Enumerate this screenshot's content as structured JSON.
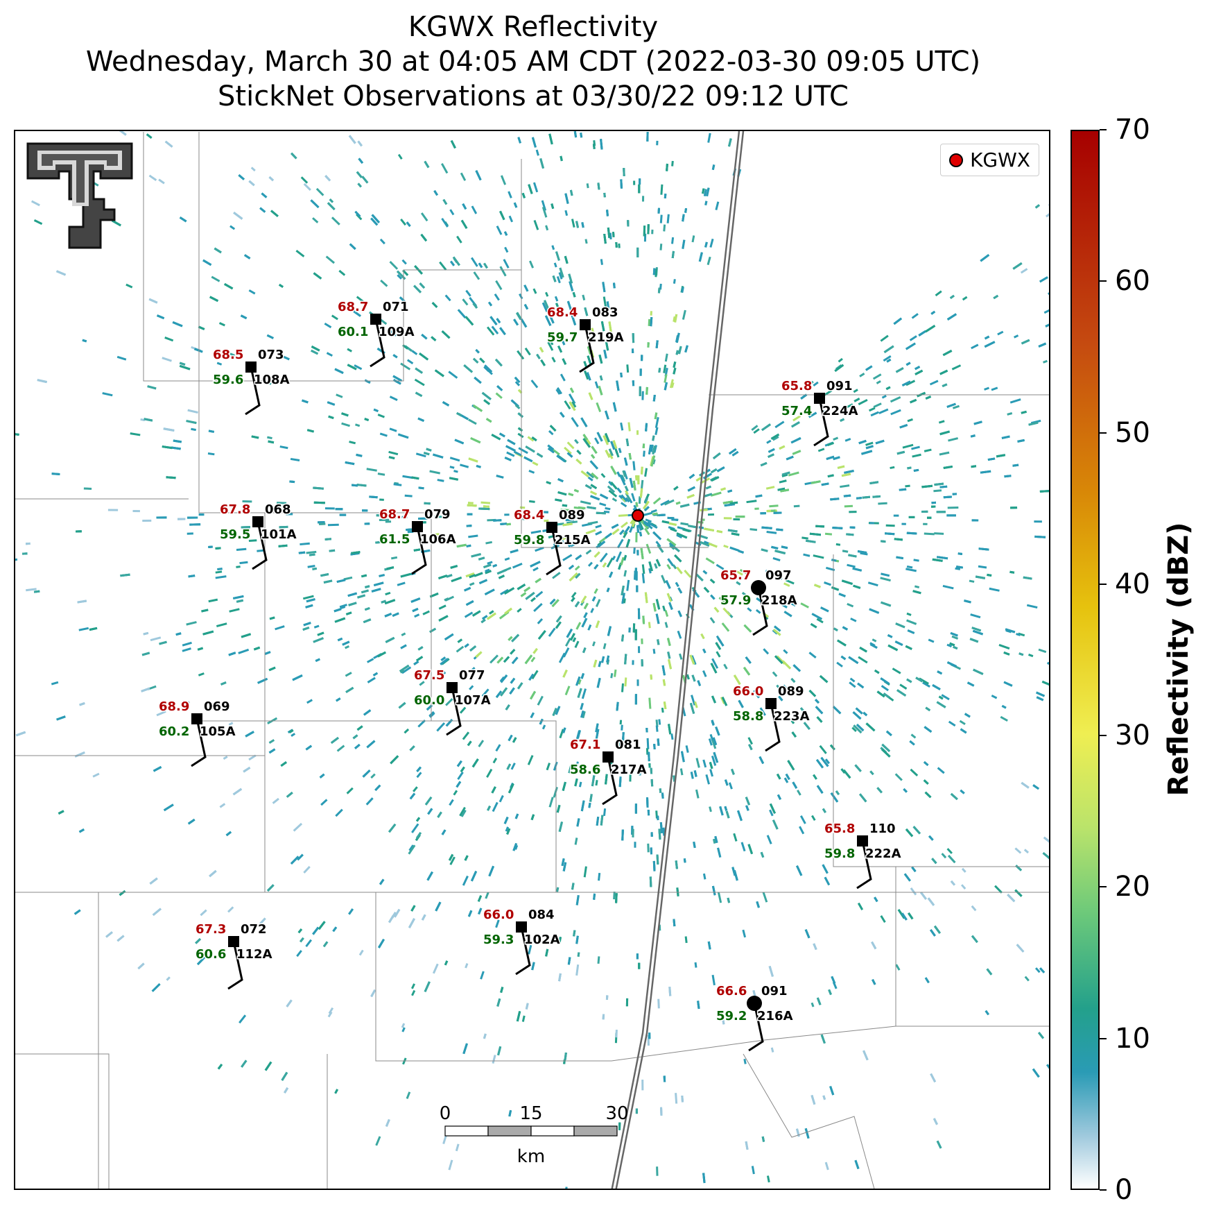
{
  "title": {
    "line1": "KGWX Reflectivity",
    "line2": "Wednesday, March 30 at 04:05 AM CDT (2022-03-30 09:05 UTC)",
    "line3": "StickNet Observations at 03/30/22 09:12 UTC"
  },
  "legend": {
    "label": "KGWX",
    "marker_color": "#e00000"
  },
  "colorbar": {
    "label": "Reflectivity (dBZ)",
    "ticks": [
      "0",
      "10",
      "20",
      "30",
      "40",
      "50",
      "60",
      "70"
    ]
  },
  "scale_bar": {
    "ticks": [
      "0",
      "15",
      "30"
    ],
    "unit": "km"
  },
  "logo": "texas-tech-double-t-logo",
  "colors": {
    "temperature": "#b00000",
    "dewpoint": "#006400",
    "station_id": "#000000"
  },
  "stations": [
    {
      "id": "109A",
      "temp": "68.7",
      "dew": "60.1",
      "dir": "071"
    },
    {
      "id": "219A",
      "temp": "68.4",
      "dew": "59.7",
      "dir": "083"
    },
    {
      "id": "108A",
      "temp": "68.5",
      "dew": "59.6",
      "dir": "073"
    },
    {
      "id": "224A",
      "temp": "65.8",
      "dew": "57.4",
      "dir": "091"
    },
    {
      "id": "101A",
      "temp": "67.8",
      "dew": "59.5",
      "dir": "068"
    },
    {
      "id": "106A",
      "temp": "68.7",
      "dew": "61.5",
      "dir": "079"
    },
    {
      "id": "215A",
      "temp": "68.4",
      "dew": "59.8",
      "dir": "089"
    },
    {
      "id": "218A",
      "temp": "65.7",
      "dew": "57.9",
      "dir": "097"
    },
    {
      "id": "107A",
      "temp": "67.5",
      "dew": "60.0",
      "dir": "077"
    },
    {
      "id": "223A",
      "temp": "66.0",
      "dew": "58.8",
      "dir": "089"
    },
    {
      "id": "105A",
      "temp": "68.9",
      "dew": "60.2",
      "dir": "069"
    },
    {
      "id": "217A",
      "temp": "67.1",
      "dew": "58.6",
      "dir": "081"
    },
    {
      "id": "222A",
      "temp": "65.8",
      "dew": "59.8",
      "dir": "110"
    },
    {
      "id": "102A",
      "temp": "66.0",
      "dew": "59.3",
      "dir": "084"
    },
    {
      "id": "112A",
      "temp": "67.3",
      "dew": "60.6",
      "dir": "072"
    },
    {
      "id": "216A",
      "temp": "66.6",
      "dew": "59.2",
      "dir": "091"
    }
  ]
}
